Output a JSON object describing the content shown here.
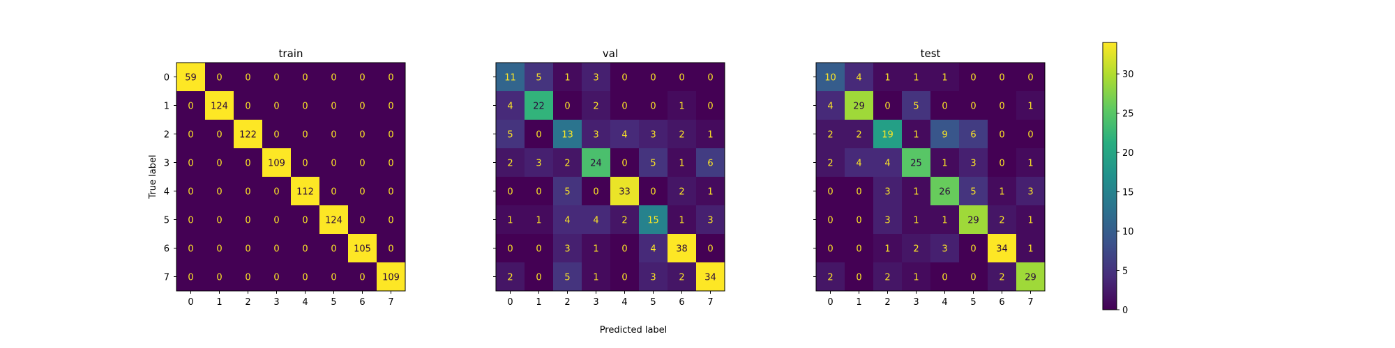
{
  "chart_data": {
    "type": "heatmap",
    "figure": {
      "xlabel": "Predicted label",
      "ylabel": "True label"
    },
    "colorbar": {
      "colormap": "viridis",
      "vmin": 0,
      "vmax": 34,
      "ticks": [
        0,
        5,
        10,
        15,
        20,
        25,
        30
      ]
    },
    "panels": [
      {
        "title": "train",
        "x_categories": [
          "0",
          "1",
          "2",
          "3",
          "4",
          "5",
          "6",
          "7"
        ],
        "y_categories": [
          "0",
          "1",
          "2",
          "3",
          "4",
          "5",
          "6",
          "7"
        ],
        "show_ytick_labels": true,
        "values": [
          [
            59,
            0,
            0,
            0,
            0,
            0,
            0,
            0
          ],
          [
            0,
            124,
            0,
            0,
            0,
            0,
            0,
            0
          ],
          [
            0,
            0,
            122,
            0,
            0,
            0,
            0,
            0
          ],
          [
            0,
            0,
            0,
            109,
            0,
            0,
            0,
            0
          ],
          [
            0,
            0,
            0,
            0,
            112,
            0,
            0,
            0
          ],
          [
            0,
            0,
            0,
            0,
            0,
            124,
            0,
            0
          ],
          [
            0,
            0,
            0,
            0,
            0,
            0,
            105,
            0
          ],
          [
            0,
            0,
            0,
            0,
            0,
            0,
            0,
            109
          ]
        ]
      },
      {
        "title": "val",
        "x_categories": [
          "0",
          "1",
          "2",
          "3",
          "4",
          "5",
          "6",
          "7"
        ],
        "y_categories": [
          "0",
          "1",
          "2",
          "3",
          "4",
          "5",
          "6",
          "7"
        ],
        "show_ytick_labels": false,
        "values": [
          [
            11,
            5,
            1,
            3,
            0,
            0,
            0,
            0
          ],
          [
            4,
            22,
            0,
            2,
            0,
            0,
            1,
            0
          ],
          [
            5,
            0,
            13,
            3,
            4,
            3,
            2,
            1
          ],
          [
            2,
            3,
            2,
            24,
            0,
            5,
            1,
            6
          ],
          [
            0,
            0,
            5,
            0,
            33,
            0,
            2,
            1
          ],
          [
            1,
            1,
            4,
            4,
            2,
            15,
            1,
            3
          ],
          [
            0,
            0,
            3,
            1,
            0,
            4,
            38,
            0
          ],
          [
            2,
            0,
            5,
            1,
            0,
            3,
            2,
            34
          ]
        ]
      },
      {
        "title": "test",
        "x_categories": [
          "0",
          "1",
          "2",
          "3",
          "4",
          "5",
          "6",
          "7"
        ],
        "y_categories": [
          "0",
          "1",
          "2",
          "3",
          "4",
          "5",
          "6",
          "7"
        ],
        "show_ytick_labels": false,
        "values": [
          [
            10,
            4,
            1,
            1,
            1,
            0,
            0,
            0
          ],
          [
            4,
            29,
            0,
            5,
            0,
            0,
            0,
            1
          ],
          [
            2,
            2,
            19,
            1,
            9,
            6,
            0,
            0
          ],
          [
            2,
            4,
            4,
            25,
            1,
            3,
            0,
            1
          ],
          [
            0,
            0,
            3,
            1,
            26,
            5,
            1,
            3
          ],
          [
            0,
            0,
            3,
            1,
            1,
            29,
            2,
            1
          ],
          [
            0,
            0,
            1,
            2,
            3,
            0,
            34,
            1
          ],
          [
            2,
            0,
            2,
            1,
            0,
            0,
            2,
            29
          ]
        ]
      }
    ]
  }
}
